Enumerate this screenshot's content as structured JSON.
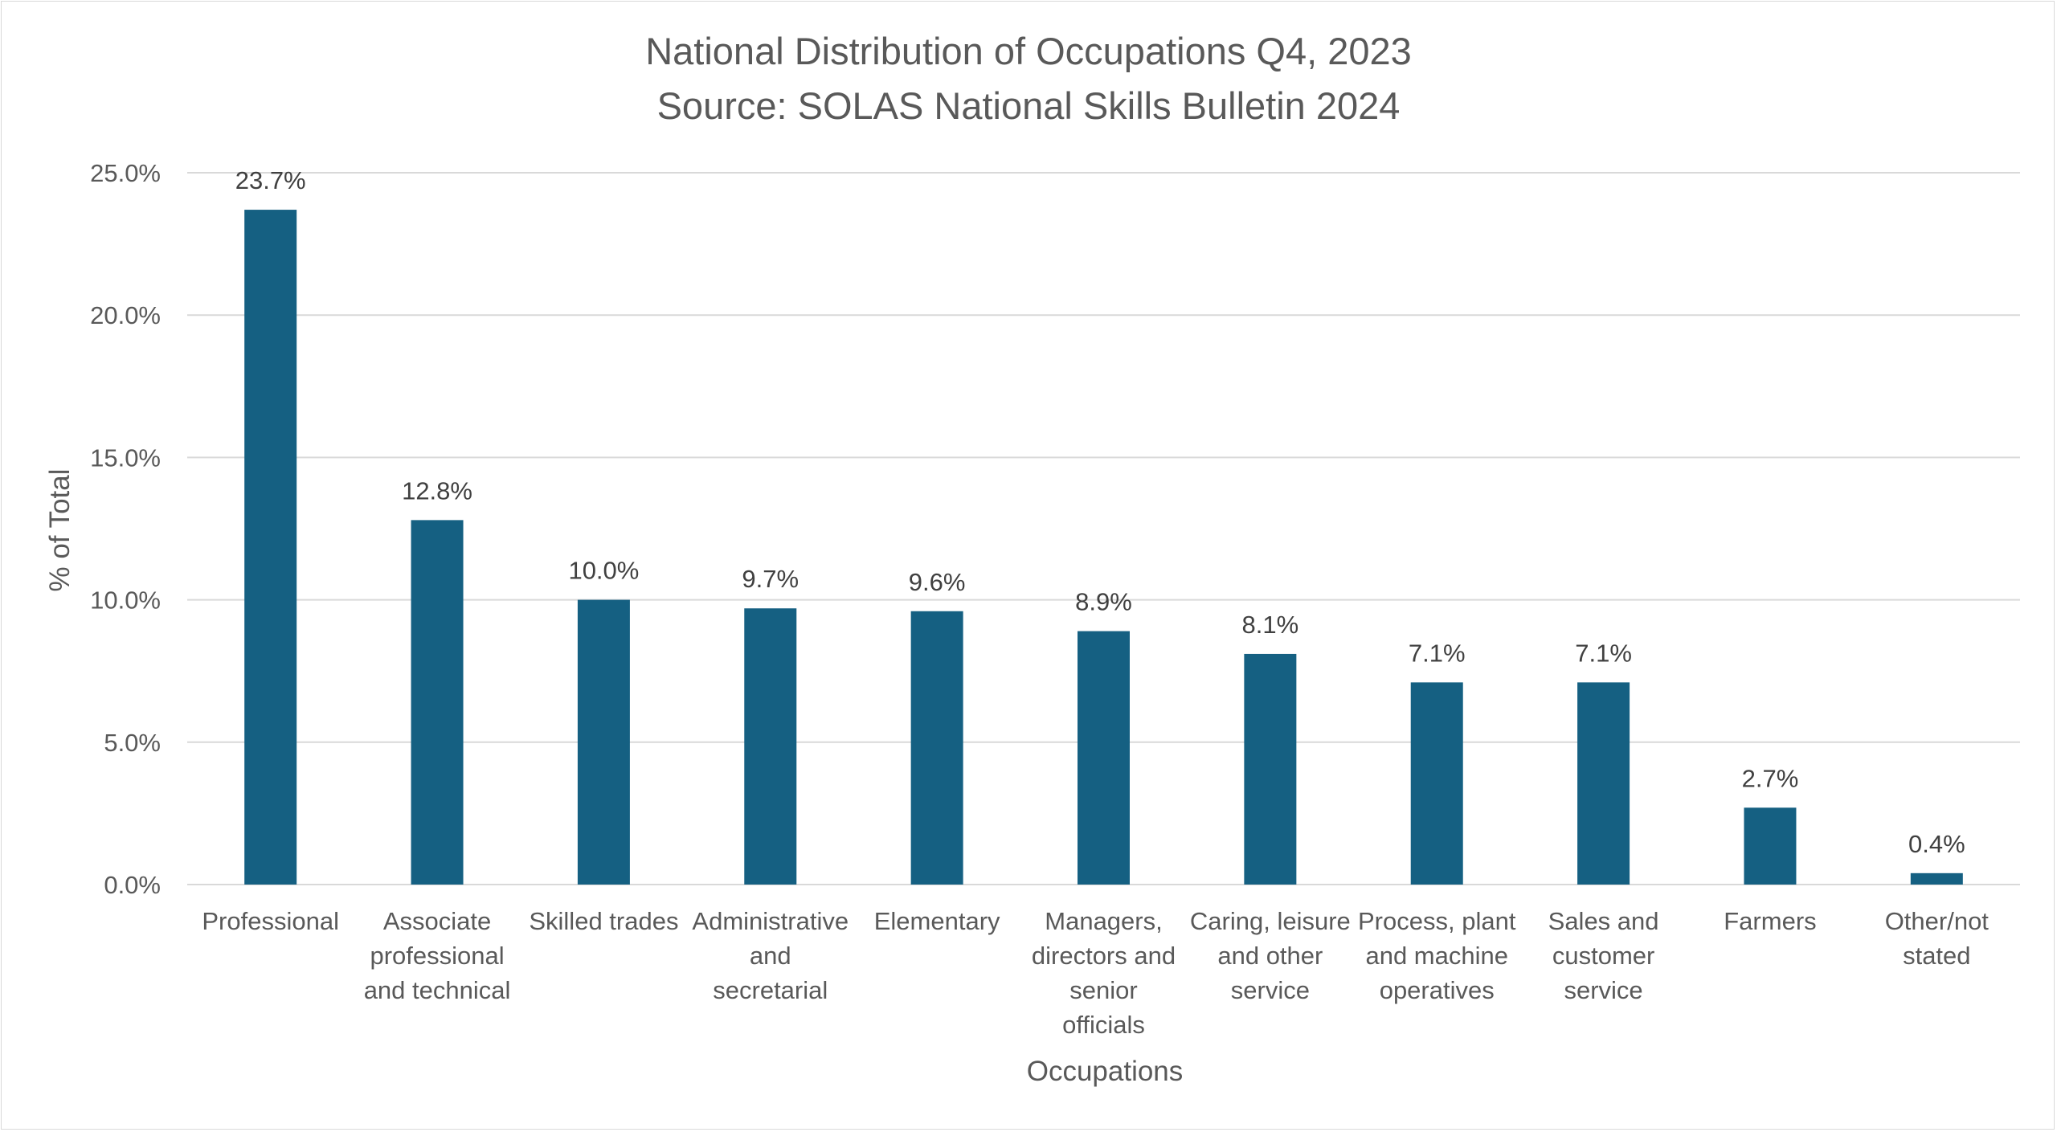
{
  "chart_data": {
    "type": "bar",
    "title": "National Distribution of Occupations Q4, 2023",
    "subtitle": "Source: SOLAS National Skills Bulletin 2024",
    "xlabel": "Occupations",
    "ylabel": "% of Total",
    "ylim": [
      0,
      25
    ],
    "yticks": [
      0,
      5,
      10,
      15,
      20,
      25
    ],
    "ytick_labels": [
      "0.0%",
      "5.0%",
      "10.0%",
      "15.0%",
      "20.0%",
      "25.0%"
    ],
    "grid": true,
    "legend": "none",
    "categories": [
      "Professional",
      "Associate professional and technical",
      "Skilled trades",
      "Administrative and secretarial",
      "Elementary",
      "Managers, directors and senior officials",
      "Caring, leisure and other service",
      "Process, plant and machine operatives",
      "Sales and customer service",
      "Farmers",
      "Other/not stated"
    ],
    "category_label_lines": [
      [
        "Professional"
      ],
      [
        "Associate",
        "professional",
        "and technical"
      ],
      [
        "Skilled trades"
      ],
      [
        "Administrative",
        "and",
        "secretarial"
      ],
      [
        "Elementary"
      ],
      [
        "Managers,",
        "directors and",
        "senior",
        "officials"
      ],
      [
        "Caring, leisure",
        "and other",
        "service"
      ],
      [
        "Process, plant",
        "and machine",
        "operatives"
      ],
      [
        "Sales and",
        "customer",
        "service"
      ],
      [
        "Farmers"
      ],
      [
        "Other/not",
        "stated"
      ]
    ],
    "values": [
      23.7,
      12.8,
      10.0,
      9.7,
      9.6,
      8.9,
      8.1,
      7.1,
      7.1,
      2.7,
      0.4
    ],
    "data_labels": [
      "23.7%",
      "12.8%",
      "10.0%",
      "9.7%",
      "9.6%",
      "8.9%",
      "8.1%",
      "7.1%",
      "7.1%",
      "2.7%",
      "0.4%"
    ],
    "colors": {
      "bar": "#156082",
      "grid": "#d9d9d9",
      "text": "#595959",
      "data_label": "#404040",
      "frame": "#d9d9d9"
    }
  }
}
